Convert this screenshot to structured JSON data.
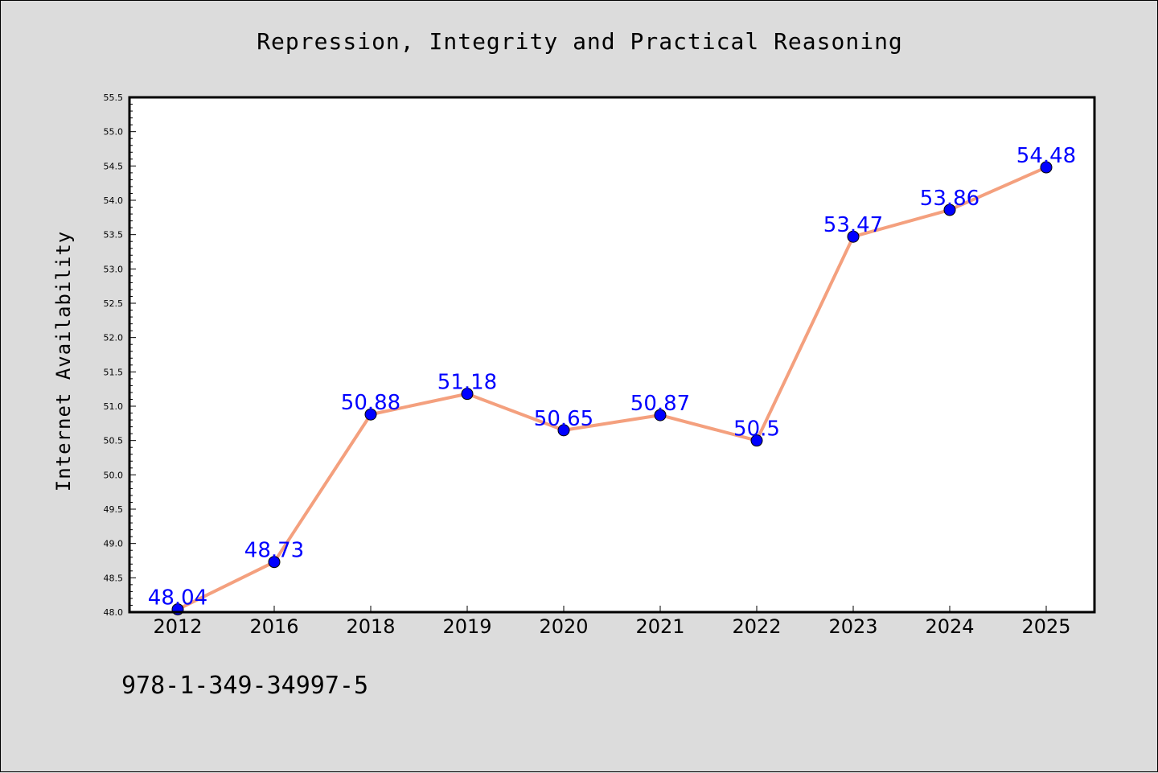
{
  "chart_data": {
    "type": "line",
    "title": "Repression, Integrity and Practical Reasoning",
    "xlabel": "",
    "ylabel": "Internet Availability",
    "categories": [
      "2012",
      "2016",
      "2018",
      "2019",
      "2020",
      "2021",
      "2022",
      "2023",
      "2024",
      "2025"
    ],
    "series": [
      {
        "values": [
          48.04,
          48.73,
          50.88,
          51.18,
          50.65,
          50.87,
          50.5,
          53.47,
          53.86,
          54.48
        ],
        "labels": [
          "48.04",
          "48.73",
          "50.88",
          "51.18",
          "50.65",
          "50.87",
          "50.5",
          "53.47",
          "53.86",
          "54.48"
        ]
      }
    ],
    "ylim": [
      48.0,
      55.5
    ],
    "yticks": [
      "48.0",
      "48.5",
      "49.0",
      "49.5",
      "50.0",
      "50.5",
      "51.0",
      "51.5",
      "52.0",
      "52.5",
      "53.0",
      "53.5",
      "54.0",
      "54.5",
      "55.0",
      "55.5"
    ],
    "grid": false,
    "colors": {
      "line": "#f4a07e",
      "marker": "#0000ff",
      "data_label": "#0000ff",
      "background": "#dcdcdc",
      "plot_background": "#ffffff"
    }
  },
  "footer": {
    "code": "978-1-349-34997-5"
  }
}
